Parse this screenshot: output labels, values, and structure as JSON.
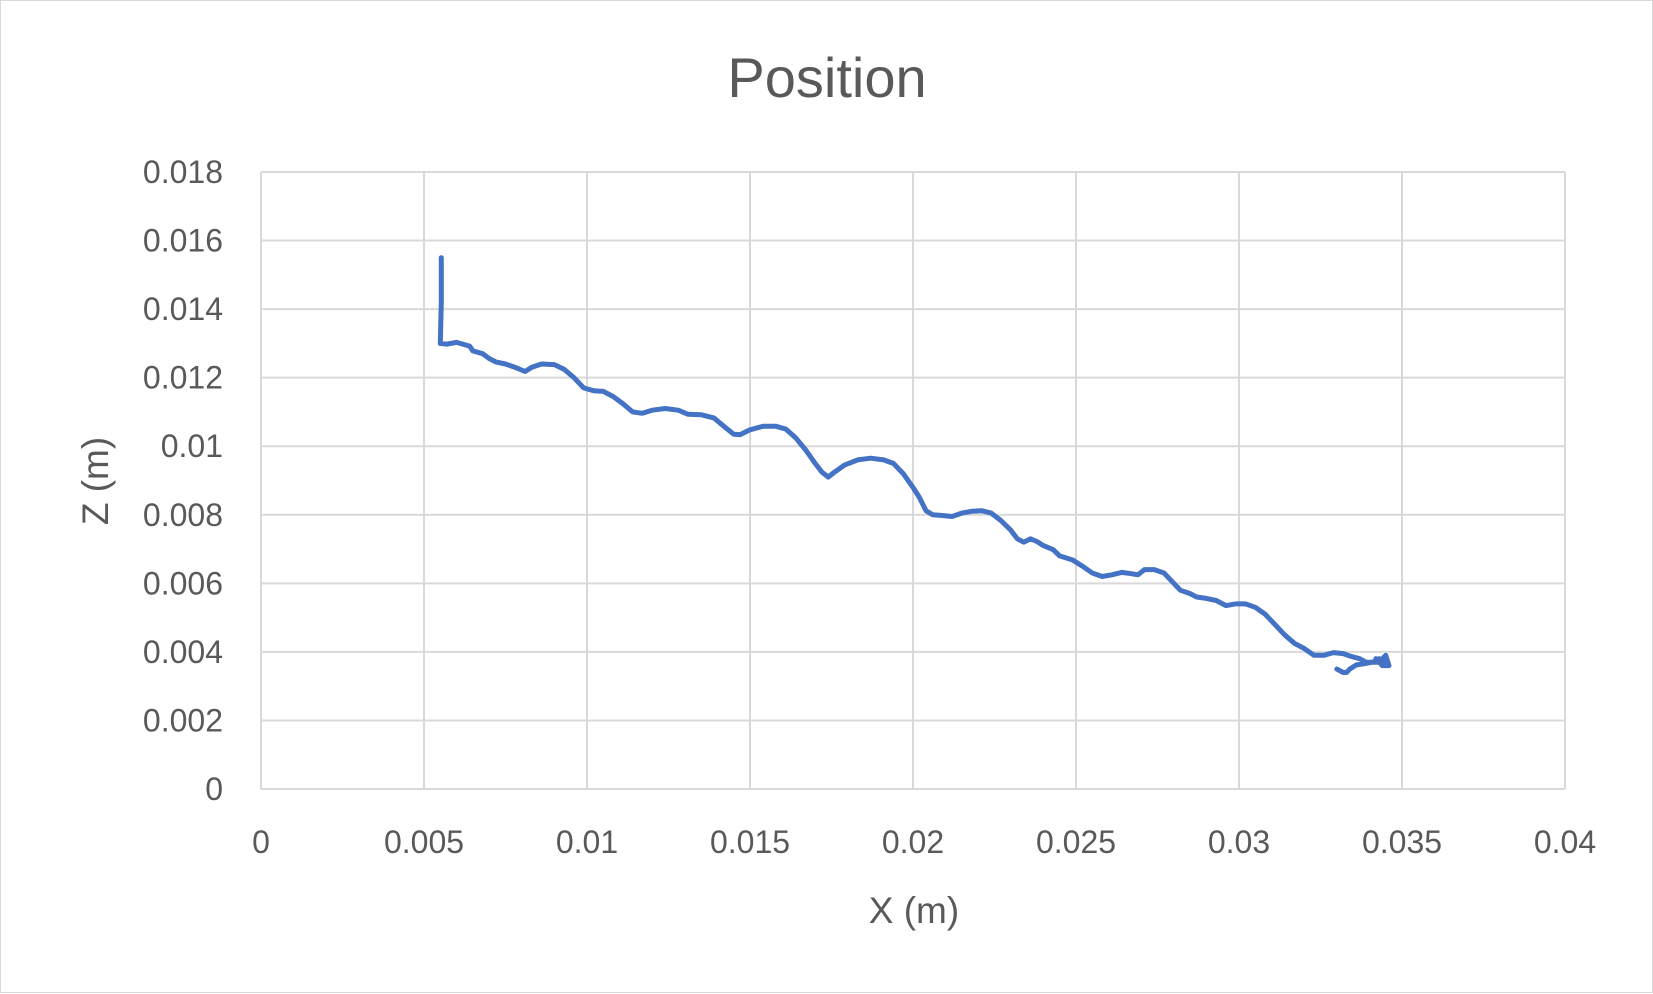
{
  "chart_data": {
    "type": "scatter",
    "title": "Position",
    "xlabel": "X (m)",
    "ylabel": "Z (m)",
    "xlim": [
      0,
      0.04
    ],
    "ylim": [
      0,
      0.018
    ],
    "x_ticks": [
      "0",
      "0.005",
      "0.01",
      "0.015",
      "0.02",
      "0.025",
      "0.03",
      "0.035",
      "0.04"
    ],
    "y_ticks": [
      "0",
      "0.002",
      "0.004",
      "0.006",
      "0.008",
      "0.01",
      "0.012",
      "0.014",
      "0.016",
      "0.018"
    ],
    "grid": true,
    "legend": "none",
    "line_color": "#4472c4",
    "series": [
      {
        "points": [
          [
            0.00553,
            0.0155
          ],
          [
            0.00553,
            0.0142
          ],
          [
            0.0055,
            0.013
          ],
          [
            0.0057,
            0.01298
          ],
          [
            0.006,
            0.01303
          ],
          [
            0.0064,
            0.01292
          ],
          [
            0.0065,
            0.01278
          ],
          [
            0.0068,
            0.0127
          ],
          [
            0.007,
            0.01256
          ],
          [
            0.0072,
            0.01246
          ],
          [
            0.0075,
            0.0124
          ],
          [
            0.0078,
            0.0123
          ],
          [
            0.0081,
            0.01218
          ],
          [
            0.0083,
            0.0123
          ],
          [
            0.0086,
            0.0124
          ],
          [
            0.009,
            0.01238
          ],
          [
            0.0093,
            0.01224
          ],
          [
            0.0096,
            0.012
          ],
          [
            0.0099,
            0.0117
          ],
          [
            0.0102,
            0.01162
          ],
          [
            0.0105,
            0.0116
          ],
          [
            0.0108,
            0.01145
          ],
          [
            0.0111,
            0.01124
          ],
          [
            0.0114,
            0.011
          ],
          [
            0.0117,
            0.01096
          ],
          [
            0.012,
            0.01105
          ],
          [
            0.0124,
            0.0111
          ],
          [
            0.0128,
            0.01105
          ],
          [
            0.0131,
            0.01093
          ],
          [
            0.0135,
            0.01092
          ],
          [
            0.0139,
            0.01082
          ],
          [
            0.0142,
            0.01058
          ],
          [
            0.0145,
            0.01035
          ],
          [
            0.0147,
            0.01034
          ],
          [
            0.015,
            0.01048
          ],
          [
            0.0154,
            0.01058
          ],
          [
            0.0158,
            0.01058
          ],
          [
            0.0161,
            0.0105
          ],
          [
            0.0164,
            0.01025
          ],
          [
            0.0167,
            0.0099
          ],
          [
            0.017,
            0.0095
          ],
          [
            0.0172,
            0.00925
          ],
          [
            0.0174,
            0.0091
          ],
          [
            0.0176,
            0.00925
          ],
          [
            0.0179,
            0.00945
          ],
          [
            0.0183,
            0.0096
          ],
          [
            0.0187,
            0.00965
          ],
          [
            0.0191,
            0.0096
          ],
          [
            0.0194,
            0.0095
          ],
          [
            0.0197,
            0.0092
          ],
          [
            0.02,
            0.0088
          ],
          [
            0.0202,
            0.0085
          ],
          [
            0.0204,
            0.00812
          ],
          [
            0.0206,
            0.008
          ],
          [
            0.0209,
            0.00798
          ],
          [
            0.0212,
            0.00795
          ],
          [
            0.0215,
            0.00805
          ],
          [
            0.0218,
            0.0081
          ],
          [
            0.0221,
            0.00812
          ],
          [
            0.0224,
            0.00805
          ],
          [
            0.0227,
            0.00783
          ],
          [
            0.023,
            0.00755
          ],
          [
            0.0232,
            0.0073
          ],
          [
            0.0234,
            0.0072
          ],
          [
            0.0236,
            0.0073
          ],
          [
            0.0238,
            0.00722
          ],
          [
            0.024,
            0.0071
          ],
          [
            0.0243,
            0.00698
          ],
          [
            0.0245,
            0.0068
          ],
          [
            0.0249,
            0.00668
          ],
          [
            0.0252,
            0.0065
          ],
          [
            0.0255,
            0.0063
          ],
          [
            0.0258,
            0.0062
          ],
          [
            0.0261,
            0.00625
          ],
          [
            0.0264,
            0.00632
          ],
          [
            0.0267,
            0.00628
          ],
          [
            0.0269,
            0.00625
          ],
          [
            0.0271,
            0.0064
          ],
          [
            0.0274,
            0.0064
          ],
          [
            0.0277,
            0.0063
          ],
          [
            0.028,
            0.006
          ],
          [
            0.0282,
            0.0058
          ],
          [
            0.0285,
            0.0057
          ],
          [
            0.0287,
            0.0056
          ],
          [
            0.029,
            0.00556
          ],
          [
            0.0293,
            0.0055
          ],
          [
            0.0296,
            0.00535
          ],
          [
            0.0299,
            0.0054
          ],
          [
            0.0302,
            0.0054
          ],
          [
            0.0305,
            0.0053
          ],
          [
            0.0308,
            0.0051
          ],
          [
            0.0311,
            0.0048
          ],
          [
            0.0314,
            0.0045
          ],
          [
            0.0317,
            0.00425
          ],
          [
            0.032,
            0.0041
          ],
          [
            0.0323,
            0.0039
          ],
          [
            0.0326,
            0.0039
          ],
          [
            0.0329,
            0.00398
          ],
          [
            0.0332,
            0.00395
          ],
          [
            0.0334,
            0.00388
          ],
          [
            0.0337,
            0.0038
          ],
          [
            0.0339,
            0.0037
          ],
          [
            0.0341,
            0.0037
          ],
          [
            0.0343,
            0.0037
          ],
          [
            0.0345,
            0.0039
          ],
          [
            0.0346,
            0.0036
          ],
          [
            0.0344,
            0.0036
          ],
          [
            0.0342,
            0.0038
          ],
          [
            0.0345,
            0.0037
          ],
          [
            0.0343,
            0.0038
          ],
          [
            0.0341,
            0.0037
          ],
          [
            0.0338,
            0.00365
          ],
          [
            0.0336,
            0.00362
          ],
          [
            0.0334,
            0.0035
          ],
          [
            0.0333,
            0.0034
          ],
          [
            0.0332,
            0.0034
          ],
          [
            0.033,
            0.0035
          ]
        ]
      }
    ]
  }
}
